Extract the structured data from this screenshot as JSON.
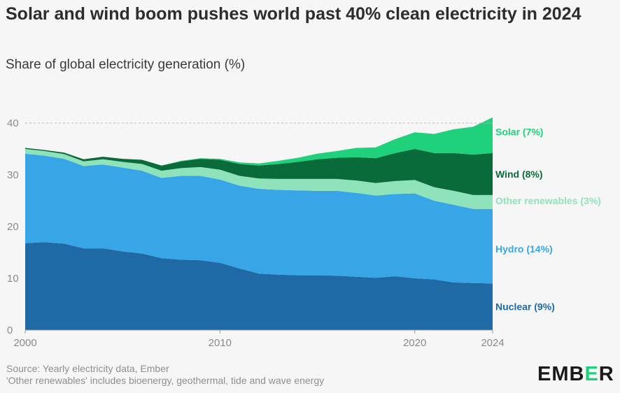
{
  "title": "Solar and wind boom pushes world past 40% clean electricity in 2024",
  "subtitle": "Share of global electricity generation (%)",
  "footer": {
    "source": "Source: Yearly electricity data, Ember",
    "note": "'Other renewables' includes bioenergy, geothermal, tide and wave energy"
  },
  "logo": {
    "prefix": "EMB",
    "accent": "E",
    "suffix": "R"
  },
  "colors": {
    "nuclear": "#1f6aa5",
    "hydro": "#38a6e6",
    "other": "#8fe3bb",
    "wind": "#0a6b3a",
    "solar": "#1ed17a",
    "grid": "#bdbdbd"
  },
  "chart_data": {
    "type": "area",
    "stacked": true,
    "title": "Solar and wind boom pushes world past 40% clean electricity in 2024",
    "ylabel": "Share of global electricity generation (%)",
    "xlim": [
      2000,
      2024
    ],
    "ylim": [
      0,
      45
    ],
    "yticks": [
      0,
      10,
      20,
      30,
      40
    ],
    "xticks": [
      2000,
      2010,
      2020,
      2024
    ],
    "grid": "dashed at 40",
    "x": [
      2000,
      2001,
      2002,
      2003,
      2004,
      2005,
      2006,
      2007,
      2008,
      2009,
      2010,
      2011,
      2012,
      2013,
      2014,
      2015,
      2016,
      2017,
      2018,
      2019,
      2020,
      2021,
      2022,
      2023,
      2024
    ],
    "series": [
      {
        "name": "Nuclear",
        "label": "Nuclear (9%)",
        "color_key": "nuclear",
        "values": [
          16.8,
          17.0,
          16.7,
          15.8,
          15.8,
          15.2,
          14.8,
          13.9,
          13.6,
          13.5,
          13.0,
          11.9,
          10.9,
          10.7,
          10.6,
          10.6,
          10.5,
          10.3,
          10.1,
          10.4,
          10.0,
          9.8,
          9.2,
          9.1,
          9.0
        ]
      },
      {
        "name": "Hydro",
        "label": "Hydro (14%)",
        "color_key": "hydro",
        "values": [
          17.3,
          16.7,
          16.4,
          15.9,
          16.2,
          16.2,
          16.0,
          15.5,
          16.2,
          16.3,
          16.1,
          16.0,
          16.4,
          16.4,
          16.4,
          16.3,
          16.4,
          16.2,
          15.9,
          15.9,
          16.4,
          15.2,
          15.0,
          14.3,
          14.4
        ]
      },
      {
        "name": "Other renewables",
        "label": "Other renewables (3%)",
        "color_key": "other",
        "values": [
          0.9,
          0.9,
          0.9,
          0.9,
          1.0,
          1.1,
          1.3,
          1.4,
          1.5,
          1.7,
          1.9,
          1.9,
          2.0,
          2.1,
          2.2,
          2.3,
          2.3,
          2.4,
          2.4,
          2.5,
          2.6,
          2.6,
          2.7,
          2.7,
          2.7
        ]
      },
      {
        "name": "Wind",
        "label": "Wind (8%)",
        "color_key": "wind",
        "values": [
          0.2,
          0.2,
          0.3,
          0.4,
          0.5,
          0.6,
          0.8,
          1.0,
          1.3,
          1.6,
          1.9,
          2.3,
          2.5,
          2.9,
          3.3,
          3.8,
          4.1,
          4.5,
          4.8,
          5.4,
          6.0,
          6.6,
          7.3,
          7.8,
          8.1
        ]
      },
      {
        "name": "Solar",
        "label": "Solar (7%)",
        "color_key": "solar",
        "values": [
          0.0,
          0.0,
          0.0,
          0.0,
          0.0,
          0.0,
          0.0,
          0.0,
          0.1,
          0.1,
          0.2,
          0.3,
          0.4,
          0.6,
          0.8,
          1.1,
          1.3,
          1.8,
          2.1,
          2.7,
          3.2,
          3.7,
          4.6,
          5.4,
          6.9
        ]
      }
    ]
  }
}
